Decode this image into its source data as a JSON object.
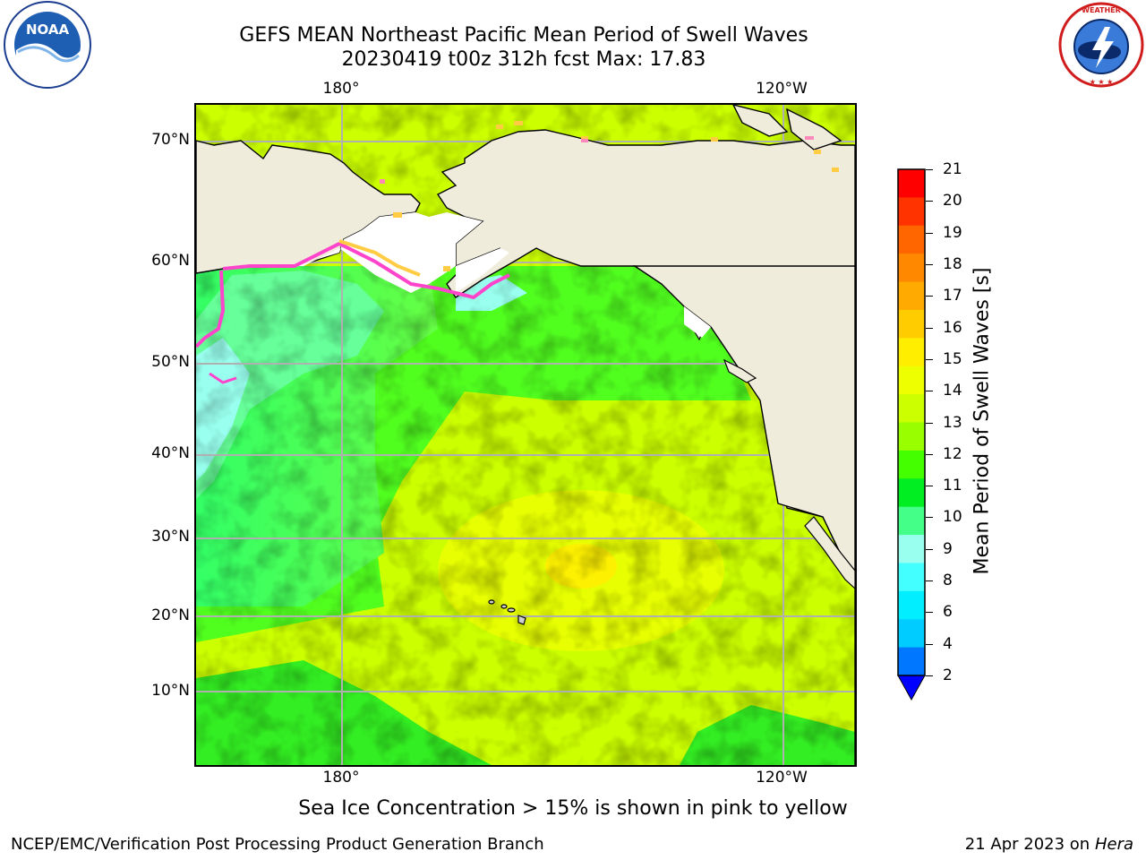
{
  "header": {
    "title_line1": "GEFS MEAN Northeast Pacific Mean Period of Swell Waves",
    "title_line2": "20230419 t00z 312h fcst   Max: 17.83"
  },
  "logos": {
    "noaa_text": "NOAA",
    "noaa_ring_text": "NATIONAL OCEANIC AND ATMOSPHERIC ADMINISTRATION · U.S. DEPARTMENT OF COMMERCE",
    "nws_ring_text": "NATIONAL WEATHER SERVICE"
  },
  "map": {
    "lon_labels_top": [
      "180°",
      "120°W"
    ],
    "lon_labels_bottom": [
      "180°",
      "120°W"
    ],
    "lat_labels": [
      "70°N",
      "60°N",
      "50°N",
      "40°N",
      "30°N",
      "20°N",
      "10°N"
    ],
    "colors": {
      "land": "#efecdc",
      "coast": "#000000",
      "grid": "#b0b0b0",
      "ice_edge": "#ff44cc",
      "ice_yellow": "#ffcc44"
    }
  },
  "colorbar": {
    "label": "Mean Period of Swell Waves [s]",
    "ticks": [
      "21",
      "20",
      "19",
      "18",
      "17",
      "16",
      "15",
      "14",
      "13",
      "12",
      "11",
      "10",
      "9",
      "8",
      "6",
      "4",
      "2"
    ],
    "colors_top_to_bottom": [
      "#ff0000",
      "#ff3300",
      "#ff6600",
      "#ff8800",
      "#ffaa00",
      "#ffcc00",
      "#ffee00",
      "#eeff00",
      "#ccff00",
      "#99ff00",
      "#44ff00",
      "#00ee22",
      "#44ff88",
      "#99ffee",
      "#44ffff",
      "#00eeff",
      "#00ccff",
      "#0077ff"
    ],
    "under_color": "#0000ff"
  },
  "note": "Sea Ice Concentration > 15% is shown in pink to yellow",
  "footer": {
    "left": "NCEP/EMC/Verification Post Processing Product Generation Branch",
    "right_date": "21 Apr 2023 on ",
    "right_machine": "Hera"
  }
}
